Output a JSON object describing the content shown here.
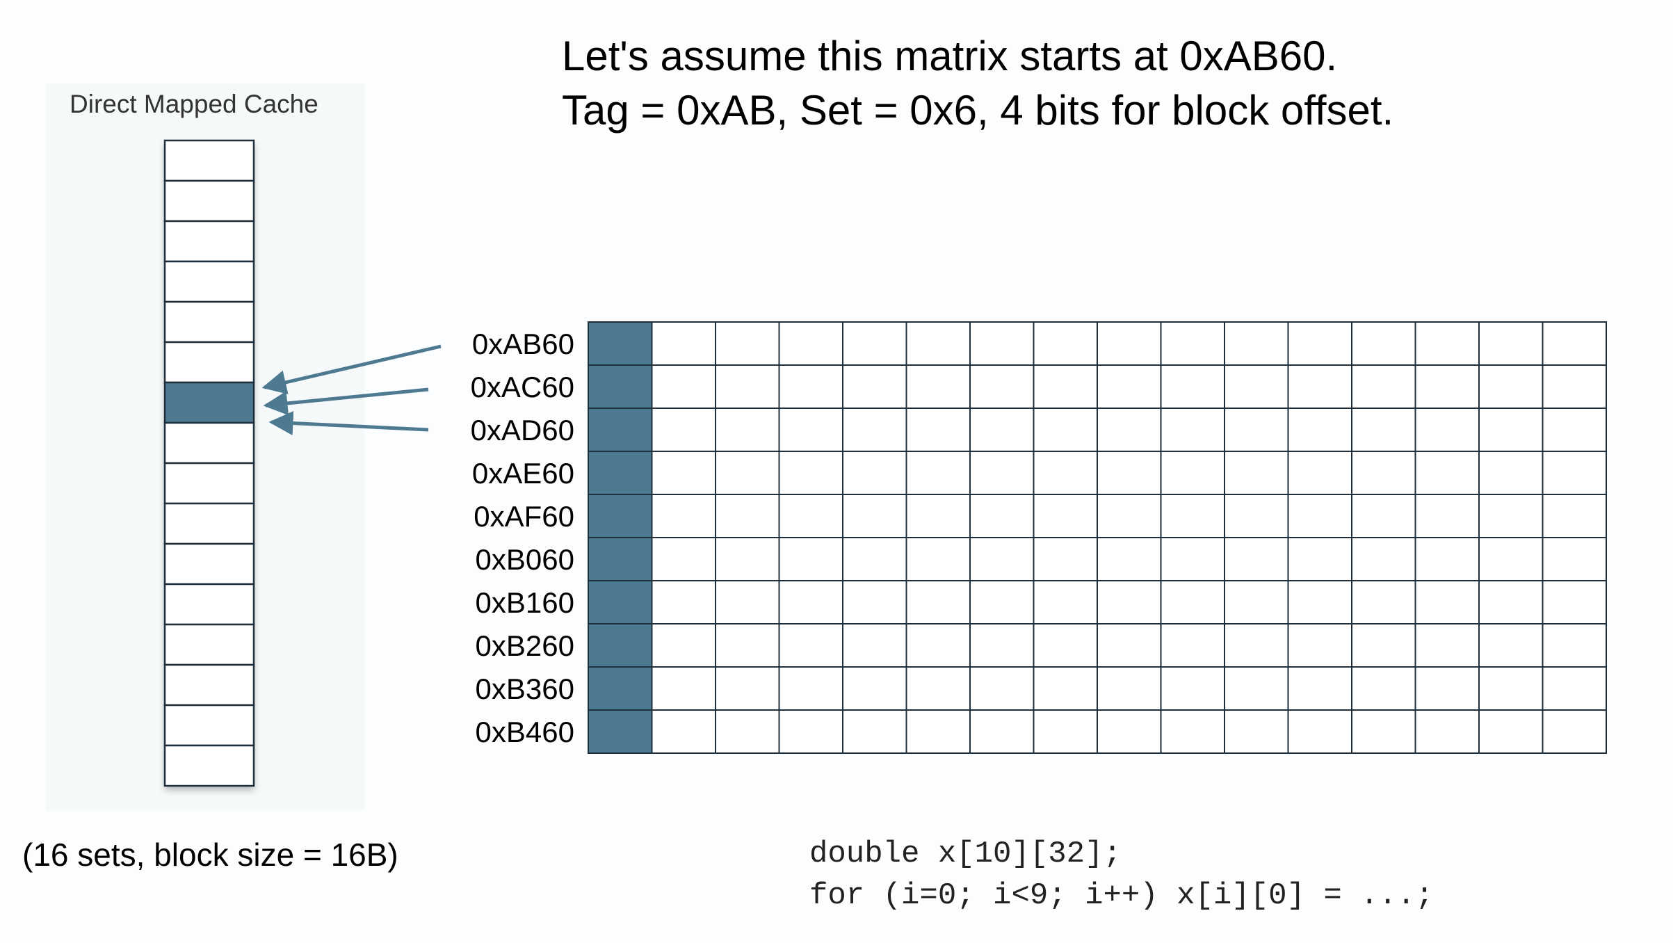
{
  "heading": {
    "line1": "Let's assume this matrix starts at 0xAB60.",
    "line2": "Tag = 0xAB, Set = 0x6, 4 bits for block offset."
  },
  "cache": {
    "title": "Direct Mapped Cache",
    "num_sets": 16,
    "highlighted_set": 6,
    "caption": "(16 sets, block size = 16B)"
  },
  "matrix": {
    "row_labels": [
      "0xAB60",
      "0xAC60",
      "0xAD60",
      "0xAE60",
      "0xAF60",
      "0xB060",
      "0xB160",
      "0xB260",
      "0xB360",
      "0xB460"
    ],
    "columns": 16,
    "highlighted_column": 0,
    "arrow_source_rows": [
      0,
      1,
      2
    ]
  },
  "code": {
    "line1": "double x[10][32];",
    "line2": "for (i=0; i<9; i++) x[i][0] = ...;"
  },
  "colors": {
    "highlight": "#4e7a91",
    "arrow": "#4e7a91",
    "grid_line": "#1f2f3c",
    "cell_fill": "#ffffff"
  }
}
